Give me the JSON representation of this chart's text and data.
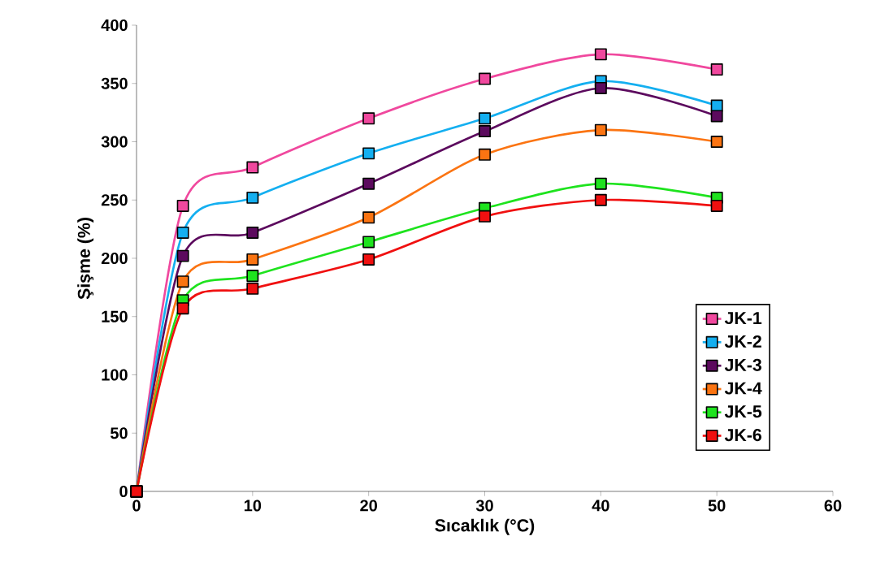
{
  "chart_data": {
    "type": "line",
    "xlabel": "Sıcaklık (°C)",
    "ylabel": "Şişme (%)",
    "x": [
      0,
      4,
      10,
      20,
      30,
      40,
      50
    ],
    "xlim": [
      0,
      60
    ],
    "xticks": [
      0,
      10,
      20,
      30,
      40,
      50,
      60
    ],
    "ylim": [
      0,
      400
    ],
    "yticks": [
      0,
      50,
      100,
      150,
      200,
      250,
      300,
      350,
      400
    ],
    "grid": false,
    "legend": "bottom right",
    "marker": "square",
    "line_style": "solid",
    "series": [
      {
        "name": "JK-1",
        "color": "#f0489e",
        "values": [
          0,
          245,
          278,
          320,
          354,
          375,
          362
        ]
      },
      {
        "name": "JK-2",
        "color": "#14aff0",
        "values": [
          0,
          222,
          252,
          290,
          320,
          352,
          331
        ]
      },
      {
        "name": "JK-3",
        "color": "#5c0a5e",
        "values": [
          0,
          202,
          222,
          264,
          309,
          346,
          322
        ]
      },
      {
        "name": "JK-4",
        "color": "#fb7412",
        "values": [
          0,
          180,
          199,
          235,
          289,
          310,
          300
        ]
      },
      {
        "name": "JK-5",
        "color": "#1ee31e",
        "values": [
          0,
          164,
          185,
          214,
          243,
          264,
          252
        ]
      },
      {
        "name": "JK-6",
        "color": "#f01010",
        "values": [
          0,
          157,
          174,
          199,
          236,
          250,
          245
        ]
      }
    ]
  }
}
